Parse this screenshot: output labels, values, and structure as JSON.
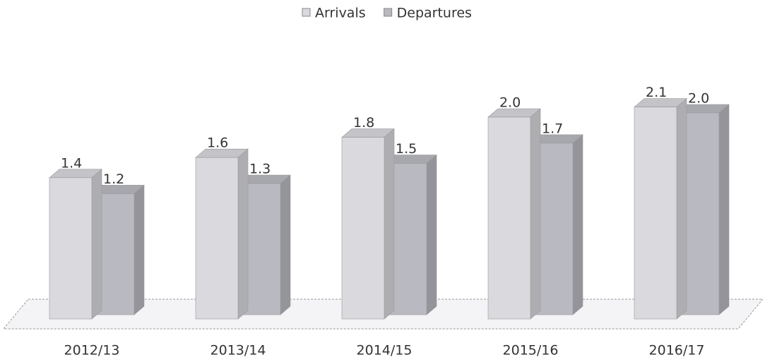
{
  "chart_data": {
    "type": "bar3d",
    "categories": [
      "2012/13",
      "2013/14",
      "2014/15",
      "2015/16",
      "2016/17"
    ],
    "series": [
      {
        "name": "Arrivals",
        "color": "#d9d9de",
        "values": [
          1.4,
          1.6,
          1.8,
          2.0,
          2.1
        ],
        "value_labels": [
          "1.4",
          "1.6",
          "1.8",
          "2.0",
          "2.1"
        ]
      },
      {
        "name": "Departures",
        "color": "#b9b9c1",
        "values": [
          1.2,
          1.3,
          1.5,
          1.7,
          2.0
        ],
        "value_labels": [
          "1.2",
          "1.3",
          "1.5",
          "1.7",
          "2.0"
        ]
      }
    ],
    "legend": "top"
  }
}
